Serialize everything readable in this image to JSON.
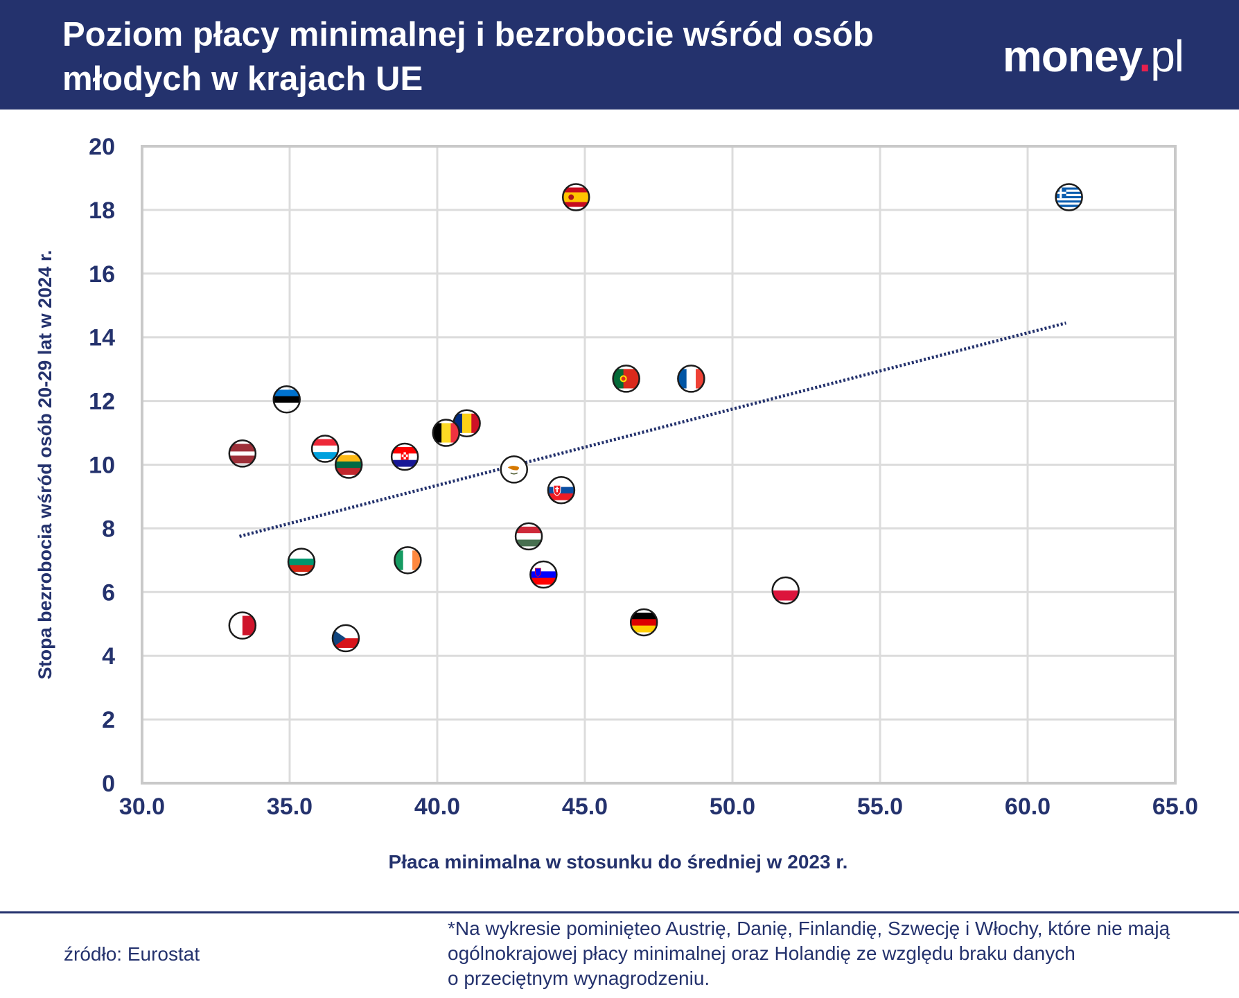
{
  "header": {
    "title_line1": "Poziom płacy minimalnej i bezrobocie wśród osób",
    "title_line2": "młodych w krajach UE",
    "logo_main": "money",
    "logo_dot": ".",
    "logo_tld": "pl",
    "background_color": "#24326d",
    "logo_dot_color": "#e8204d"
  },
  "chart_data": {
    "type": "scatter",
    "xlabel": "Płaca minimalna w stosunku do średniej w 2023 r.",
    "ylabel": "Stopa bezrobocia wśród osób 20-29 lat w 2024 r.",
    "xlim": [
      30,
      65
    ],
    "ylim": [
      0,
      20
    ],
    "xticks": [
      "30.0",
      "35.0",
      "40.0",
      "45.0",
      "50.0",
      "55.0",
      "60.0",
      "65.0"
    ],
    "yticks": [
      "0",
      "2",
      "4",
      "6",
      "8",
      "10",
      "12",
      "14",
      "16",
      "18",
      "20"
    ],
    "grid": true,
    "trendline": {
      "style": "dotted",
      "x": [
        33.3,
        61.3
      ],
      "y": [
        7.75,
        14.45
      ]
    },
    "points": [
      {
        "country": "Grecja",
        "flag": "greece-flag",
        "x": 61.4,
        "y": 18.4
      },
      {
        "country": "Hiszpania",
        "flag": "spain-flag",
        "x": 44.7,
        "y": 18.4
      },
      {
        "country": "Portugalia",
        "flag": "portugal-flag",
        "x": 46.4,
        "y": 12.7
      },
      {
        "country": "Francja",
        "flag": "france-flag",
        "x": 48.6,
        "y": 12.7
      },
      {
        "country": "Estonia",
        "flag": "estonia-flag",
        "x": 34.9,
        "y": 12.05
      },
      {
        "country": "Rumunia",
        "flag": "romania-flag",
        "x": 41.0,
        "y": 11.3
      },
      {
        "country": "Belgia",
        "flag": "belgium-flag",
        "x": 40.3,
        "y": 11.0
      },
      {
        "country": "Luksemburg",
        "flag": "luxembourg-flag",
        "x": 36.2,
        "y": 10.5
      },
      {
        "country": "Łotwa",
        "flag": "latvia-flag",
        "x": 33.4,
        "y": 10.35
      },
      {
        "country": "Chorwacja",
        "flag": "croatia-flag",
        "x": 38.9,
        "y": 10.25
      },
      {
        "country": "Litwa",
        "flag": "lithuania-flag",
        "x": 37.0,
        "y": 10.0
      },
      {
        "country": "Cypr",
        "flag": "cyprus-flag",
        "x": 42.6,
        "y": 9.85
      },
      {
        "country": "Słowacja",
        "flag": "slovakia-flag",
        "x": 44.2,
        "y": 9.2
      },
      {
        "country": "Węgry",
        "flag": "hungary-flag",
        "x": 43.1,
        "y": 7.75
      },
      {
        "country": "Bułgaria",
        "flag": "bulgaria-flag",
        "x": 35.4,
        "y": 6.95
      },
      {
        "country": "Irlandia",
        "flag": "ireland-flag",
        "x": 39.0,
        "y": 7.0
      },
      {
        "country": "Słowenia",
        "flag": "slovenia-flag",
        "x": 43.6,
        "y": 6.55
      },
      {
        "country": "Polska",
        "flag": "poland-flag",
        "x": 51.8,
        "y": 6.05
      },
      {
        "country": "Niemcy",
        "flag": "germany-flag",
        "x": 47.0,
        "y": 5.05
      },
      {
        "country": "Malta",
        "flag": "malta-flag",
        "x": 33.4,
        "y": 4.95
      },
      {
        "country": "Czechy",
        "flag": "czechia-flag",
        "x": 36.9,
        "y": 4.55
      }
    ],
    "colors": {
      "text": "#24326d",
      "grid": "#dcdcdc",
      "frame": "#c9c9c9",
      "trendline": "#24326d"
    }
  },
  "footer": {
    "source": "źródło: Eurostat",
    "note_line1": "*Na wykresie pominięteo Austrię, Danię, Finlandię, Szwecję i Włochy, które nie mają",
    "note_line2": "ogólnokrajowej płacy minimalnej oraz Holandię ze względu braku danych",
    "note_line3": "o przeciętnym wynagrodzeniu."
  }
}
